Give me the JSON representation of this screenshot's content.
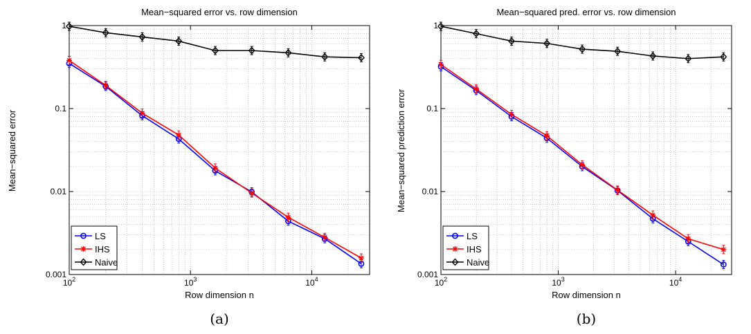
{
  "chart_data": [
    {
      "type": "line",
      "title": "Mean−squared error vs. row dimension",
      "xlabel": "Row dimension n",
      "ylabel": "Mean−squared error",
      "caption": "(a)",
      "xscale": "log",
      "yscale": "log",
      "xlim": [
        100,
        30000
      ],
      "ylim": [
        0.001,
        1
      ],
      "xticks": [
        {
          "base": "10",
          "exp": "2",
          "value": 100
        },
        {
          "base": "10",
          "exp": "3",
          "value": 1000
        },
        {
          "base": "10",
          "exp": "4",
          "value": 10000
        }
      ],
      "yticks": [
        {
          "label": "0.001",
          "value": 0.001
        },
        {
          "label": "0.01",
          "value": 0.01
        },
        {
          "label": "0.1",
          "value": 0.1
        },
        {
          "label": "1",
          "value": 1
        }
      ],
      "grid": true,
      "legend_position": "bottom-left",
      "x": [
        100,
        200,
        400,
        800,
        1600,
        3200,
        6400,
        12800,
        25600
      ],
      "series": [
        {
          "name": "LS",
          "color": "#0000ff",
          "marker": "circle",
          "values": [
            0.35,
            0.185,
            0.082,
            0.043,
            0.0178,
            0.0099,
            0.0044,
            0.0027,
            0.00135
          ]
        },
        {
          "name": "IHS",
          "color": "#ff0000",
          "marker": "star",
          "values": [
            0.38,
            0.19,
            0.088,
            0.048,
            0.0192,
            0.0096,
            0.0049,
            0.0028,
            0.00158
          ]
        },
        {
          "name": "Naive",
          "color": "#000000",
          "marker": "diamond",
          "values": [
            0.98,
            0.82,
            0.73,
            0.65,
            0.5,
            0.5,
            0.47,
            0.42,
            0.41
          ]
        }
      ]
    },
    {
      "type": "line",
      "title": "Mean−squared pred. error vs. row dimension",
      "xlabel": "Row dimension n",
      "ylabel": "Mean−squared prediction error",
      "caption": "(b)",
      "xscale": "log",
      "yscale": "log",
      "xlim": [
        100,
        30000
      ],
      "ylim": [
        0.001,
        1
      ],
      "xticks": [
        {
          "base": "10",
          "exp": "2",
          "value": 100
        },
        {
          "base": "10",
          "exp": "3",
          "value": 1000
        },
        {
          "base": "10",
          "exp": "4",
          "value": 10000
        }
      ],
      "yticks": [
        {
          "label": "0.001",
          "value": 0.001
        },
        {
          "label": "0.01",
          "value": 0.01
        },
        {
          "label": "0.1",
          "value": 0.1
        },
        {
          "label": "1",
          "value": 1
        }
      ],
      "grid": true,
      "legend_position": "bottom-left",
      "x": [
        100,
        200,
        400,
        800,
        1600,
        3200,
        6400,
        12800,
        25600
      ],
      "series": [
        {
          "name": "LS",
          "color": "#0000ff",
          "marker": "circle",
          "values": [
            0.32,
            0.165,
            0.08,
            0.044,
            0.02,
            0.0103,
            0.0047,
            0.0025,
            0.00132
          ]
        },
        {
          "name": "IHS",
          "color": "#ff0000",
          "marker": "star",
          "values": [
            0.34,
            0.172,
            0.085,
            0.047,
            0.021,
            0.0104,
            0.0052,
            0.0027,
            0.002
          ]
        },
        {
          "name": "Naive",
          "color": "#000000",
          "marker": "diamond",
          "values": [
            0.98,
            0.8,
            0.65,
            0.61,
            0.52,
            0.49,
            0.43,
            0.4,
            0.42
          ]
        }
      ]
    }
  ]
}
